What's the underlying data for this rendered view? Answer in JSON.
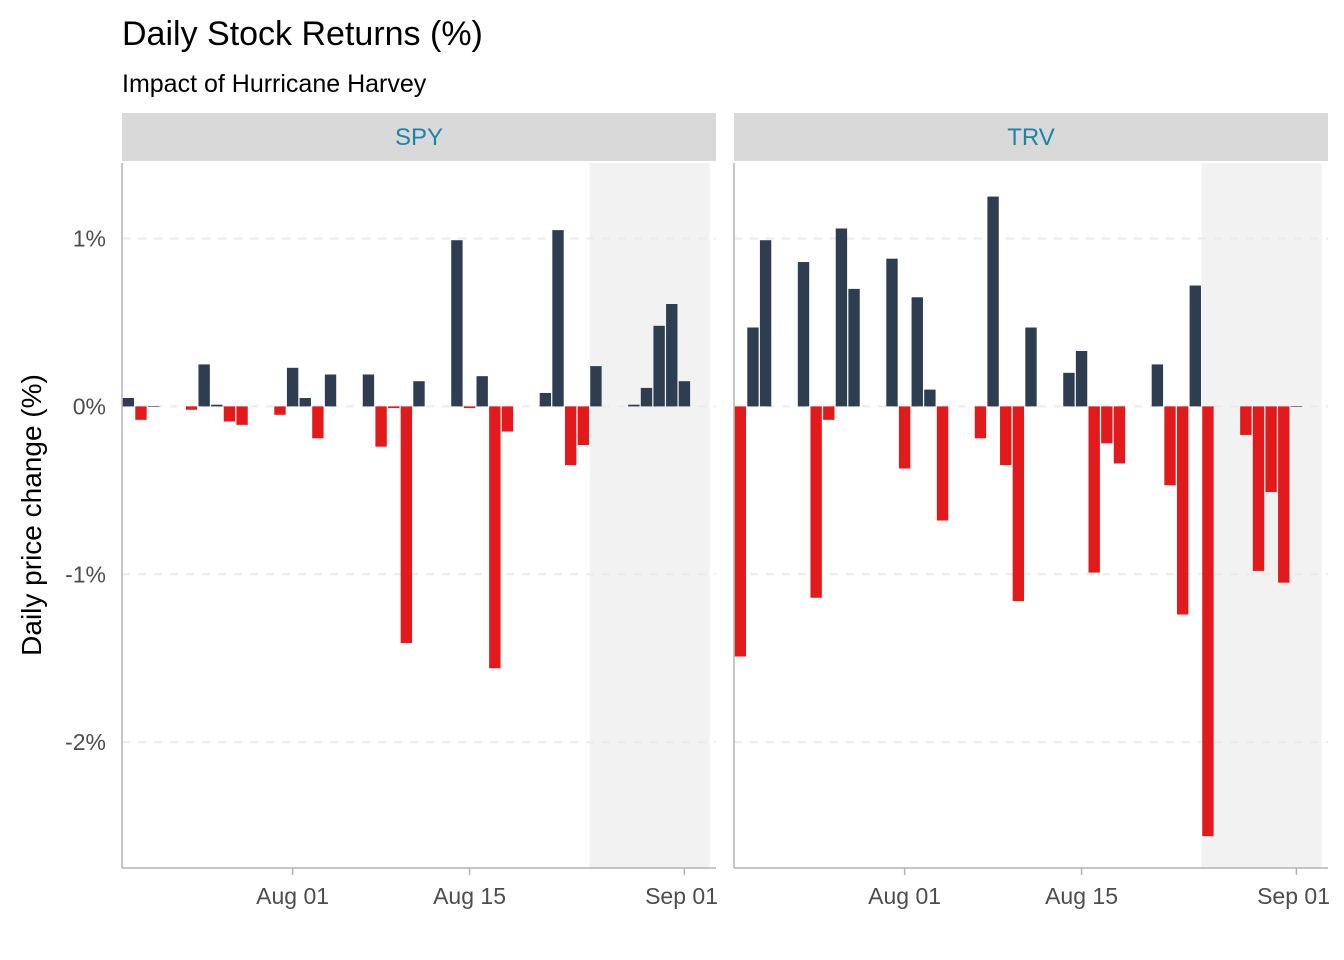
{
  "chart_data": {
    "type": "bar",
    "title": "Daily Stock Returns (%)",
    "subtitle": "Impact of Hurricane Harvey",
    "ylabel": "Daily price change (%)",
    "xlabel": "",
    "ylim": [
      -2.75,
      1.45
    ],
    "yticks": [
      1,
      0,
      -1,
      -2
    ],
    "ytick_labels": [
      "1%",
      "0%",
      "-1%",
      "-2%"
    ],
    "xlim": [
      "2017-07-19",
      "2017-09-03"
    ],
    "xticks": [
      "2017-08-01",
      "2017-08-15",
      "2017-09-01"
    ],
    "xtick_labels": [
      "Aug 01",
      "Aug 15",
      "Sep 01"
    ],
    "shaded_period": [
      "2017-08-25",
      "2017-09-03"
    ],
    "grid": "horizontal dashed",
    "legend": "none",
    "colors": {
      "positive": "#2e3e50",
      "negative": "#e31a1c",
      "shaded": "#f2f2f2",
      "strip_bg": "#d9d9d9",
      "strip_text": "#1a85a8",
      "grid": "#ebebeb",
      "axis": "#b3b3b3"
    },
    "series": [
      {
        "name": "SPY",
        "x": [
          "2017-07-19",
          "2017-07-20",
          "2017-07-21",
          "2017-07-24",
          "2017-07-25",
          "2017-07-26",
          "2017-07-27",
          "2017-07-28",
          "2017-07-31",
          "2017-08-01",
          "2017-08-02",
          "2017-08-03",
          "2017-08-04",
          "2017-08-07",
          "2017-08-08",
          "2017-08-09",
          "2017-08-10",
          "2017-08-11",
          "2017-08-14",
          "2017-08-15",
          "2017-08-16",
          "2017-08-17",
          "2017-08-18",
          "2017-08-21",
          "2017-08-22",
          "2017-08-23",
          "2017-08-24",
          "2017-08-25",
          "2017-08-28",
          "2017-08-29",
          "2017-08-30",
          "2017-08-31",
          "2017-09-01"
        ],
        "values": [
          0.05,
          -0.08,
          0.0,
          -0.02,
          0.25,
          0.01,
          -0.09,
          -0.11,
          -0.05,
          0.23,
          0.05,
          -0.19,
          0.19,
          0.19,
          -0.24,
          -0.01,
          -1.41,
          0.15,
          0.99,
          -0.01,
          0.18,
          -1.56,
          -0.15,
          0.08,
          1.05,
          -0.35,
          -0.23,
          0.24,
          0.01,
          0.11,
          0.48,
          0.61,
          0.15
        ]
      },
      {
        "name": "TRV",
        "x": [
          "2017-07-19",
          "2017-07-20",
          "2017-07-21",
          "2017-07-24",
          "2017-07-25",
          "2017-07-26",
          "2017-07-27",
          "2017-07-28",
          "2017-07-31",
          "2017-08-01",
          "2017-08-02",
          "2017-08-03",
          "2017-08-04",
          "2017-08-07",
          "2017-08-08",
          "2017-08-09",
          "2017-08-10",
          "2017-08-11",
          "2017-08-14",
          "2017-08-15",
          "2017-08-16",
          "2017-08-17",
          "2017-08-18",
          "2017-08-21",
          "2017-08-22",
          "2017-08-23",
          "2017-08-24",
          "2017-08-25",
          "2017-08-28",
          "2017-08-29",
          "2017-08-30",
          "2017-08-31",
          "2017-09-01"
        ],
        "values": [
          -1.49,
          0.47,
          0.99,
          0.86,
          -1.14,
          -0.08,
          1.06,
          0.7,
          0.88,
          -0.37,
          0.65,
          0.1,
          -0.68,
          -0.19,
          1.25,
          -0.35,
          -1.16,
          0.47,
          0.2,
          0.33,
          -0.99,
          -0.22,
          -0.34,
          0.25,
          -0.47,
          -1.24,
          0.72,
          -2.56,
          -0.17,
          -0.98,
          -0.51,
          -1.05,
          0.0
        ]
      }
    ]
  }
}
